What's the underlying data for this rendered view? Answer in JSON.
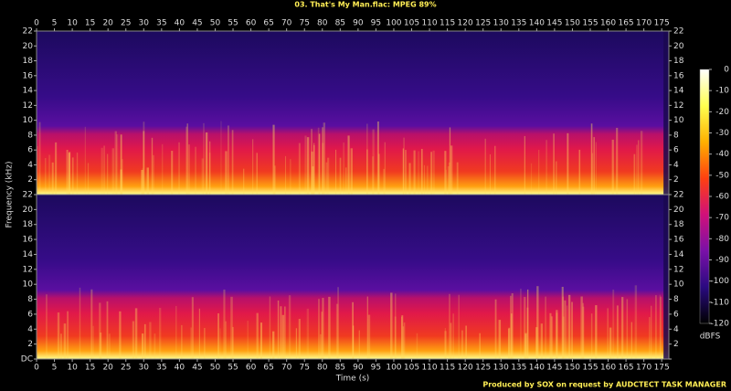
{
  "chart_data": {
    "type": "spectrogram",
    "title": "03. That's My Man.flac: MPEG 89%",
    "xlabel": "Time (s)",
    "ylabel": "Frequency (kHz)",
    "xlim": [
      0,
      177
    ],
    "xticks": [
      0,
      5,
      10,
      15,
      20,
      25,
      30,
      35,
      40,
      45,
      50,
      55,
      60,
      65,
      70,
      75,
      80,
      85,
      90,
      95,
      100,
      105,
      110,
      115,
      120,
      125,
      130,
      135,
      140,
      145,
      150,
      155,
      160,
      165,
      170,
      175
    ],
    "ylim": [
      0,
      22
    ],
    "yticks": [
      {
        "value": 0,
        "label": "DC"
      },
      2,
      4,
      6,
      8,
      10,
      12,
      14,
      16,
      18,
      20,
      22
    ],
    "colorbar": {
      "label": "dBFS",
      "lim": [
        -120,
        0
      ],
      "ticks": [
        0,
        -10,
        -20,
        -30,
        -40,
        -50,
        -60,
        -70,
        -80,
        -90,
        -100,
        -110,
        -120
      ],
      "colormap": [
        "#ffffff",
        "#ffff50",
        "#ffb000",
        "#ff4010",
        "#d0107a",
        "#7a10a8",
        "#2a0a80",
        "#000000"
      ]
    },
    "footer": "Produced by SOX on request by AUDCTECT TASK MANAGER"
  }
}
